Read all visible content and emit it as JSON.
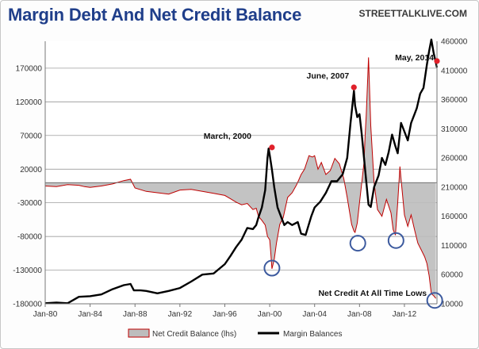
{
  "header": {
    "title": "Margin Debt And Net Credit Balance",
    "brand": "STREETTALKLIVE.COM"
  },
  "chart_data": {
    "type": "line",
    "title": "Margin Debt And Net Credit Balance",
    "xlim": [
      1980.0,
      2014.9
    ],
    "x_ticks": [
      1980,
      1984,
      1988,
      1992,
      1996,
      2000,
      2004,
      2008,
      2012
    ],
    "x_tick_labels": [
      "Jan-80",
      "Jan-84",
      "Jan-88",
      "Jan-92",
      "Jan-96",
      "Jan-00",
      "Jan-04",
      "Jan-08",
      "Jan-12"
    ],
    "y_left": {
      "min": -180000,
      "max": 210000,
      "ticks": [
        170000,
        120000,
        70000,
        20000,
        -30000,
        -80000,
        -130000,
        -180000
      ],
      "tick_labels": [
        "170000",
        "120000",
        "70000",
        "20000",
        "-30000",
        "-80000",
        "-130000",
        "-180000"
      ]
    },
    "y_right": {
      "min": 10000,
      "max": 460000,
      "ticks": [
        460000,
        410000,
        360000,
        310000,
        260000,
        210000,
        160000,
        110000,
        60000,
        10000
      ],
      "tick_labels": [
        "460000",
        "410000",
        "360000",
        "310000",
        "260000",
        "210000",
        "160000",
        "110000",
        "60000",
        "10000"
      ]
    },
    "grid": true,
    "legend_position": "bottom",
    "series": [
      {
        "name": "Net Credit Balance (lhs)",
        "axis": "left",
        "style": "area",
        "color": "#c00000",
        "fill": "#bdbdbd",
        "x": [
          1980.0,
          1981.0,
          1982.0,
          1983.0,
          1983.5,
          1984.0,
          1985.0,
          1986.0,
          1987.0,
          1987.6,
          1988.0,
          1989.0,
          1990.0,
          1991.0,
          1992.0,
          1993.0,
          1994.0,
          1995.0,
          1996.0,
          1996.5,
          1997.0,
          1997.5,
          1998.0,
          1998.5,
          1998.8,
          1999.0,
          1999.3,
          1999.6,
          1999.8,
          2000.0,
          2000.1,
          2000.2,
          2000.4,
          2000.6,
          2000.9,
          2001.2,
          2001.6,
          2002.0,
          2002.4,
          2002.8,
          2003.1,
          2003.5,
          2003.8,
          2004.0,
          2004.3,
          2004.6,
          2005.0,
          2005.4,
          2005.8,
          2006.2,
          2006.6,
          2006.9,
          2007.1,
          2007.3,
          2007.5,
          2007.6,
          2007.8,
          2008.0,
          2008.2,
          2008.4,
          2008.5,
          2008.6,
          2008.8,
          2009.0,
          2009.3,
          2009.6,
          2010.0,
          2010.4,
          2010.8,
          2011.0,
          2011.2,
          2011.4,
          2011.6,
          2011.8,
          2012.0,
          2012.3,
          2012.6,
          2012.9,
          2013.2,
          2013.5,
          2013.8,
          2014.0,
          2014.2,
          2014.4,
          2014.6,
          2014.8
        ],
        "values": [
          -5000,
          -6000,
          -3000,
          -4000,
          -6000,
          -7000,
          -5000,
          -2000,
          3000,
          5000,
          -8000,
          -13000,
          -15000,
          -17000,
          -11000,
          -10000,
          -13000,
          -16000,
          -19000,
          -24000,
          -29000,
          -33000,
          -31000,
          -40000,
          -38000,
          -50000,
          -56000,
          -63000,
          -80000,
          -85000,
          -105000,
          -128000,
          -114000,
          -90000,
          -62000,
          -52000,
          -22000,
          -15000,
          -3000,
          12000,
          20000,
          40000,
          38000,
          40000,
          20000,
          30000,
          12000,
          18000,
          36000,
          28000,
          6000,
          -22000,
          -42000,
          -62000,
          -72000,
          -74000,
          -60000,
          -30000,
          0,
          30000,
          70000,
          100000,
          186000,
          85000,
          0,
          -40000,
          -50000,
          -25000,
          -45000,
          -70000,
          -78000,
          -30000,
          24000,
          -12000,
          -48000,
          -65000,
          -48000,
          -70000,
          -90000,
          -100000,
          -110000,
          -120000,
          -138000,
          -165000,
          -168000,
          -172000
        ]
      },
      {
        "name": "Margin Balances",
        "axis": "right",
        "style": "line",
        "color": "#000000",
        "x": [
          1980.0,
          1981.0,
          1982.0,
          1983.0,
          1984.0,
          1985.0,
          1986.0,
          1987.0,
          1987.6,
          1987.9,
          1988.5,
          1989.0,
          1990.0,
          1991.0,
          1992.0,
          1993.0,
          1994.0,
          1995.0,
          1996.0,
          1996.5,
          1997.0,
          1997.5,
          1998.0,
          1998.5,
          1998.8,
          1999.0,
          1999.3,
          1999.6,
          1999.8,
          1999.9,
          2000.0,
          2000.2,
          2000.4,
          2000.7,
          2001.0,
          2001.3,
          2001.6,
          2002.0,
          2002.5,
          2002.8,
          2003.2,
          2003.7,
          2004.0,
          2004.5,
          2005.0,
          2005.5,
          2006.0,
          2006.5,
          2006.9,
          2007.2,
          2007.5,
          2007.6,
          2007.8,
          2008.0,
          2008.2,
          2008.4,
          2008.6,
          2008.8,
          2009.0,
          2009.3,
          2009.7,
          2010.0,
          2010.3,
          2010.6,
          2010.9,
          2011.2,
          2011.4,
          2011.7,
          2012.0,
          2012.3,
          2012.6,
          2012.9,
          2013.1,
          2013.4,
          2013.7,
          2014.0,
          2014.2,
          2014.4,
          2014.6,
          2014.9
        ],
        "values": [
          11000,
          12000,
          11000,
          22000,
          23000,
          26000,
          35000,
          42000,
          44000,
          33000,
          33000,
          32000,
          28000,
          32000,
          37000,
          48000,
          60000,
          62000,
          78000,
          92000,
          107000,
          120000,
          140000,
          138000,
          145000,
          158000,
          175000,
          205000,
          260000,
          276000,
          265000,
          240000,
          210000,
          175000,
          160000,
          145000,
          150000,
          145000,
          150000,
          130000,
          128000,
          160000,
          175000,
          185000,
          200000,
          220000,
          220000,
          232000,
          260000,
          320000,
          375000,
          350000,
          330000,
          335000,
          300000,
          260000,
          220000,
          180000,
          176000,
          210000,
          230000,
          260000,
          248000,
          270000,
          300000,
          280000,
          268000,
          320000,
          305000,
          290000,
          320000,
          335000,
          345000,
          370000,
          380000,
          420000,
          443000,
          463000,
          440000,
          415000
        ]
      }
    ],
    "annotations": [
      {
        "label": "March,  2000",
        "x": 2000.2,
        "y_right": 278000,
        "marker": "dot"
      },
      {
        "label": "June,  2007",
        "x": 2007.5,
        "y_right": 381000,
        "marker": "dot"
      },
      {
        "label": "May,  2014",
        "x": 2014.9,
        "y_right": 426000,
        "marker": "dot"
      },
      {
        "label": "Net Credit At All Time Lows",
        "x": 2014.7,
        "y_left": -175000,
        "marker": "circle"
      }
    ],
    "highlight_circles": [
      {
        "x": 2000.2,
        "y_left": -127000
      },
      {
        "x": 2007.85,
        "y_left": -90000
      },
      {
        "x": 2011.25,
        "y_left": -86000
      },
      {
        "x": 2014.7,
        "y_left": -175000
      }
    ]
  }
}
